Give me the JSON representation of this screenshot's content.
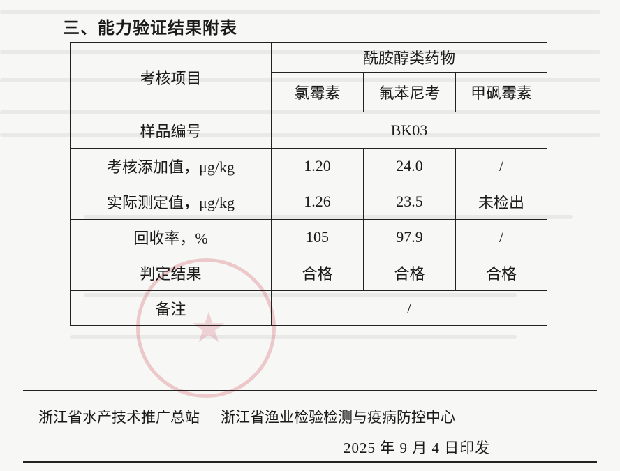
{
  "heading": "三、能力验证结果附表",
  "table": {
    "item_header": "考核项目",
    "group_header": "酰胺醇类药物",
    "drugs": [
      "氯霉素",
      "氟苯尼考",
      "甲砜霉素"
    ],
    "sample_label": "样品编号",
    "sample_id": "BK03",
    "rows": [
      {
        "label": "考核添加值，μg/kg",
        "values": [
          "1.20",
          "24.0",
          "/"
        ]
      },
      {
        "label": "实际测定值，μg/kg",
        "values": [
          "1.26",
          "23.5",
          "未检出"
        ]
      },
      {
        "label": "回收率，%",
        "values": [
          "105",
          "97.9",
          "/"
        ]
      },
      {
        "label": "判定结果",
        "values": [
          "合格",
          "合格",
          "合格"
        ]
      }
    ],
    "remark_label": "备注",
    "remark_value": "/"
  },
  "footer": {
    "org1": "浙江省水产技术推广总站",
    "org2": "浙江省渔业检验检测与疫病防控中心",
    "date": "2025 年 9 月 4 日印发"
  },
  "colors": {
    "stamp": "#d2505a",
    "text": "#1a1a1a"
  }
}
